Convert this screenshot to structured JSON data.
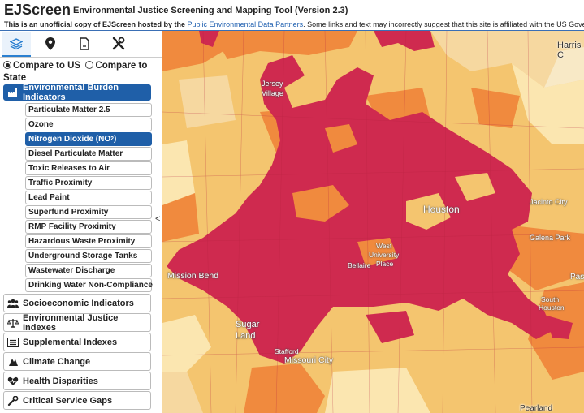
{
  "header": {
    "title": "EJScreen",
    "subtitle": "Environmental Justice Screening and Mapping Tool (Version 2.3)",
    "notice_prefix": "This is an unofficial copy of EJScreen hosted by the ",
    "notice_link": "Public Environmental Data Partners",
    "notice_suffix": ". Some links and text may incorrectly suggest that this site is affiliated with the US Government."
  },
  "toolbar": {
    "icons": [
      "layers-icon",
      "map-pin-icon",
      "document-icon",
      "tools-icon"
    ]
  },
  "compare": {
    "us_label": "Compare to US",
    "state_label": "Compare to State",
    "selected": "us"
  },
  "categories": {
    "environmental": "Environmental Burden Indicators",
    "socioeconomic": "Socioeconomic Indicators",
    "ej_indexes": "Environmental Justice Indexes",
    "supplemental": "Supplemental Indexes",
    "climate": "Climate Change",
    "health": "Health Disparities",
    "critical": "Critical Service Gaps"
  },
  "indicators": [
    "Particulate Matter 2.5",
    "Ozone",
    "Nitrogen Dioxide (NO",
    "Diesel Particulate Matter",
    "Toxic Releases to Air",
    "Traffic Proximity",
    "Lead Paint",
    "Superfund Proximity",
    "RMP Facility Proximity",
    "Hazardous Waste Proximity",
    "Underground Storage Tanks",
    "Wastewater Discharge",
    "Drinking Water Non-Compliance"
  ],
  "no2_subscript": "2",
  "no2_close": ")",
  "collapse_glyph": "<",
  "map": {
    "labels": {
      "harris": "Harris C",
      "jersey": "Jersey",
      "village": "Village",
      "houston": "Houston",
      "jacinto": "Jacinto City",
      "galena": "Galena Park",
      "west": "West",
      "university": "University",
      "place": "Place",
      "bellaire": "Bellaire",
      "mission": "Mission Bend",
      "sugar": "Sugar",
      "land": "Land",
      "stafford": "Stafford",
      "missouri": "Missouri City",
      "south": "South",
      "houston2": "Houston",
      "pasa": "Pas",
      "pearland": "Pearland"
    },
    "colors": {
      "high": "#cf2a4f",
      "mid": "#f08a3e",
      "low": "#f7c870",
      "pale": "#fbe6b0"
    }
  }
}
